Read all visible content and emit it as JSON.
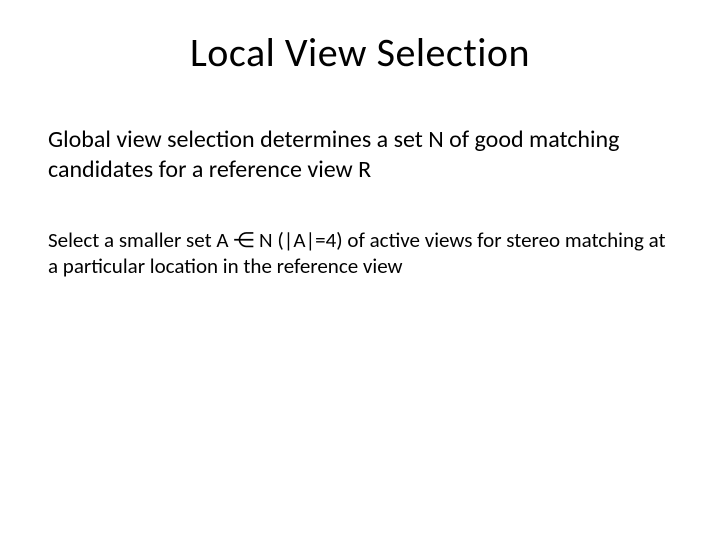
{
  "slide": {
    "title": "Local View Selection",
    "paragraph1": "Global view selection determines a set N of good matching candidates for a reference view R",
    "paragraph2": "Select a smaller set A ⋲ N (|A|=4)  of active views for stereo matching at a particular location in the reference view",
    "colors": {
      "background": "#ffffff",
      "text": "#000000"
    },
    "typography": {
      "title_fontsize": 40,
      "body1_fontsize": 24,
      "body2_fontsize": 21,
      "font_family": "Calibri"
    }
  }
}
